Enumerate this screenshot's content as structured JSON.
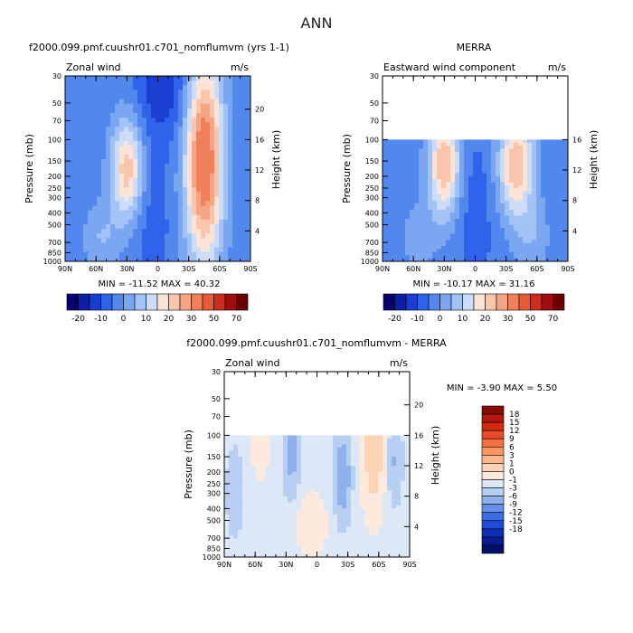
{
  "title": "ANN",
  "chart_data": [
    {
      "type": "heatmap",
      "title": "f2000.099.pmf.cuushr01.c701_nomflumvm (yrs 1-1)",
      "left_label": "Zonal wind",
      "units": "m/s",
      "ylabel": "Pressure (mb)",
      "y2label": "Height (km)",
      "x_ticks": [
        "90N",
        "60N",
        "30N",
        "0",
        "30S",
        "60S",
        "90S"
      ],
      "y_ticks": [
        "30",
        "50",
        "70",
        "100",
        "150",
        "200",
        "250",
        "300",
        "400",
        "500",
        "700",
        "850",
        "1000"
      ],
      "height_ticks": [
        "20",
        "16",
        "12",
        "8",
        "4"
      ],
      "stats": "MIN =  -11.52   MAX =  40.32",
      "min": -11.52,
      "max": 40.32,
      "data_top_mb": 30,
      "colorbar": {
        "orientation": "horizontal",
        "labels": [
          "-20",
          "-10",
          "0",
          "10",
          "20",
          "30",
          "50",
          "70"
        ],
        "colors": [
          "#08006e",
          "#0d1fa8",
          "#1a3fd0",
          "#2e63ea",
          "#5288ee",
          "#7aa6f2",
          "#a3c2f5",
          "#cddcf8",
          "#fbe4d6",
          "#f9c6ad",
          "#f5a583",
          "#f0805a",
          "#e85935",
          "#cf2d1c",
          "#a20d0f",
          "#6b0000"
        ]
      }
    },
    {
      "type": "heatmap",
      "title": "MERRA",
      "left_label": "Eastward wind component",
      "units": "m/s",
      "ylabel": "Pressure (mb)",
      "y2label": "Height (km)",
      "x_ticks": [
        "90N",
        "60N",
        "30N",
        "0",
        "30S",
        "60S",
        "90S"
      ],
      "y_ticks": [
        "30",
        "50",
        "70",
        "100",
        "150",
        "200",
        "250",
        "300",
        "400",
        "500",
        "700",
        "850",
        "1000"
      ],
      "height_ticks": [
        "16",
        "12",
        "8",
        "4"
      ],
      "stats": "MIN =  -10.17   MAX =  31.16",
      "min": -10.17,
      "max": 31.16,
      "data_top_mb": 100,
      "colorbar": {
        "orientation": "horizontal",
        "labels": [
          "-20",
          "-10",
          "0",
          "10",
          "20",
          "30",
          "50",
          "70"
        ],
        "colors": [
          "#08006e",
          "#0d1fa8",
          "#1a3fd0",
          "#2e63ea",
          "#5288ee",
          "#7aa6f2",
          "#a3c2f5",
          "#cddcf8",
          "#fbe4d6",
          "#f9c6ad",
          "#f5a583",
          "#f0805a",
          "#e85935",
          "#cf2d1c",
          "#a20d0f",
          "#6b0000"
        ]
      }
    },
    {
      "type": "heatmap",
      "title": "f2000.099.pmf.cuushr01.c701_nomflumvm - MERRA",
      "left_label": "Zonal wind",
      "units": "m/s",
      "ylabel": "Pressure (mb)",
      "y2label": "Height (km)",
      "x_ticks": [
        "90N",
        "60N",
        "30N",
        "0",
        "30S",
        "60S",
        "90S"
      ],
      "y_ticks": [
        "30",
        "50",
        "70",
        "100",
        "150",
        "200",
        "250",
        "300",
        "400",
        "500",
        "700",
        "850",
        "1000"
      ],
      "height_ticks": [
        "20",
        "16",
        "12",
        "8",
        "4"
      ],
      "stats": "MIN =   -3.90   MAX =   5.50",
      "min": -3.9,
      "max": 5.5,
      "data_top_mb": 100,
      "colorbar": {
        "orientation": "vertical",
        "labels": [
          "18",
          "15",
          "12",
          "9",
          "6",
          "3",
          "1",
          "0",
          "-1",
          "-3",
          "-6",
          "-9",
          "-12",
          "-15",
          "-18"
        ],
        "colors": [
          "#8a0a06",
          "#b4170c",
          "#d42a12",
          "#ec4a26",
          "#f46f3e",
          "#f7965f",
          "#f9b88b",
          "#fbd4b4",
          "#fdeadc",
          "#dce8f8",
          "#b7cff3",
          "#8fb1ee",
          "#6390eb",
          "#3b6de6",
          "#1f4bd6",
          "#0d2db7",
          "#061c8e",
          "#02106a"
        ]
      }
    }
  ]
}
